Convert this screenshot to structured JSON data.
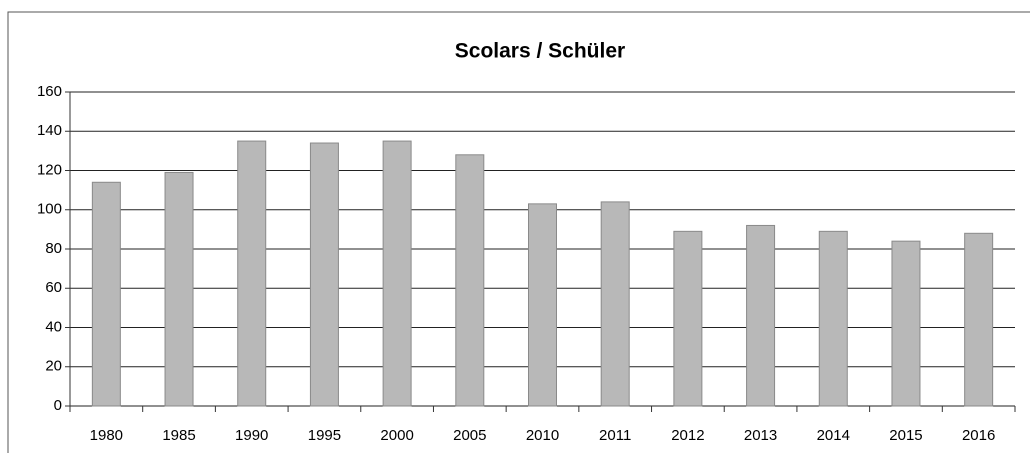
{
  "chart_data": {
    "type": "bar",
    "title": "Scolars / Schüler",
    "categories": [
      "1980",
      "1985",
      "1990",
      "1995",
      "2000",
      "2005",
      "2010",
      "2011",
      "2012",
      "2013",
      "2014",
      "2015",
      "2016"
    ],
    "values": [
      114,
      119,
      135,
      134,
      135,
      128,
      103,
      104,
      89,
      92,
      89,
      84,
      88
    ],
    "color": "#b8b8b8",
    "ylim": [
      0,
      160
    ],
    "yticks": [
      0,
      20,
      40,
      60,
      80,
      100,
      120,
      140,
      160
    ],
    "grid": true
  }
}
